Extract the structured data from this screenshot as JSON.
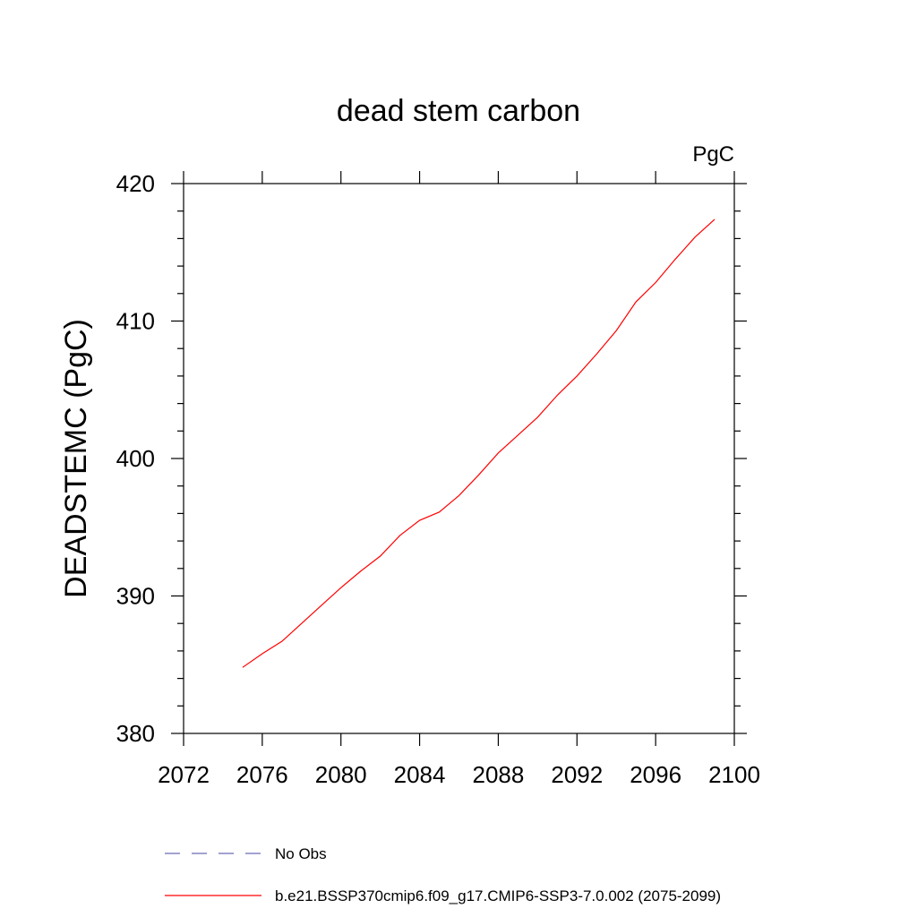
{
  "chart_data": {
    "type": "line",
    "title": "dead stem carbon",
    "units_label": "PgC",
    "xlabel": "",
    "ylabel": "DEADSTEMC  (PgC)",
    "xlim": [
      2072,
      2100
    ],
    "ylim": [
      380,
      420
    ],
    "x_ticks": [
      2072,
      2076,
      2080,
      2084,
      2088,
      2092,
      2096,
      2100
    ],
    "y_ticks": [
      380,
      390,
      400,
      410,
      420
    ],
    "grid": false,
    "legend_position": "bottom",
    "series": [
      {
        "name": "No Obs",
        "color": "#6a6ab4",
        "style": "dashed",
        "x": [],
        "y": []
      },
      {
        "name": "b.e21.BSSP370cmip6.f09_g17.CMIP6-SSP3-7.0.002 (2075-2099)",
        "color": "#ff0000",
        "style": "solid",
        "x": [
          2075,
          2076,
          2077,
          2078,
          2079,
          2080,
          2081,
          2082,
          2083,
          2084,
          2085,
          2086,
          2087,
          2088,
          2089,
          2090,
          2091,
          2092,
          2093,
          2094,
          2095,
          2096,
          2097,
          2098,
          2099
        ],
        "y": [
          384.8,
          385.8,
          386.7,
          388.0,
          389.3,
          390.6,
          391.8,
          392.9,
          394.4,
          395.5,
          396.1,
          397.3,
          398.8,
          400.4,
          401.7,
          403.0,
          404.6,
          406.0,
          407.6,
          409.3,
          411.4,
          412.8,
          414.5,
          416.1,
          417.4
        ]
      }
    ]
  }
}
